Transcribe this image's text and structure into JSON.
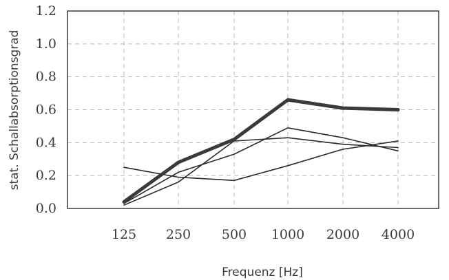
{
  "chart_data": {
    "type": "line",
    "title": "",
    "xlabel": "Frequenz [Hz]",
    "ylabel": "stat. Schallabsorptionsgrad",
    "categories": [
      "125",
      "250",
      "500",
      "1000",
      "2000",
      "4000"
    ],
    "yticks": [
      "0.0",
      "0.2",
      "0.4",
      "0.6",
      "0.8",
      "1.0",
      "1.2"
    ],
    "ylim": [
      0,
      1.2
    ],
    "grid": true,
    "legend": "none",
    "series": [
      {
        "values": [
          0.04,
          0.28,
          0.42,
          0.66,
          0.61,
          0.6
        ],
        "color": "#3a3a3a",
        "emphasis": true
      },
      {
        "values": [
          0.03,
          0.22,
          0.33,
          0.49,
          0.43,
          0.35
        ],
        "color": "#2a2a2a",
        "emphasis": false
      },
      {
        "values": [
          0.02,
          0.16,
          0.41,
          0.43,
          0.39,
          0.37
        ],
        "color": "#2a2a2a",
        "emphasis": false
      },
      {
        "values": [
          0.25,
          0.19,
          0.17,
          0.26,
          0.36,
          0.41
        ],
        "color": "#2a2a2a",
        "emphasis": false
      }
    ]
  }
}
